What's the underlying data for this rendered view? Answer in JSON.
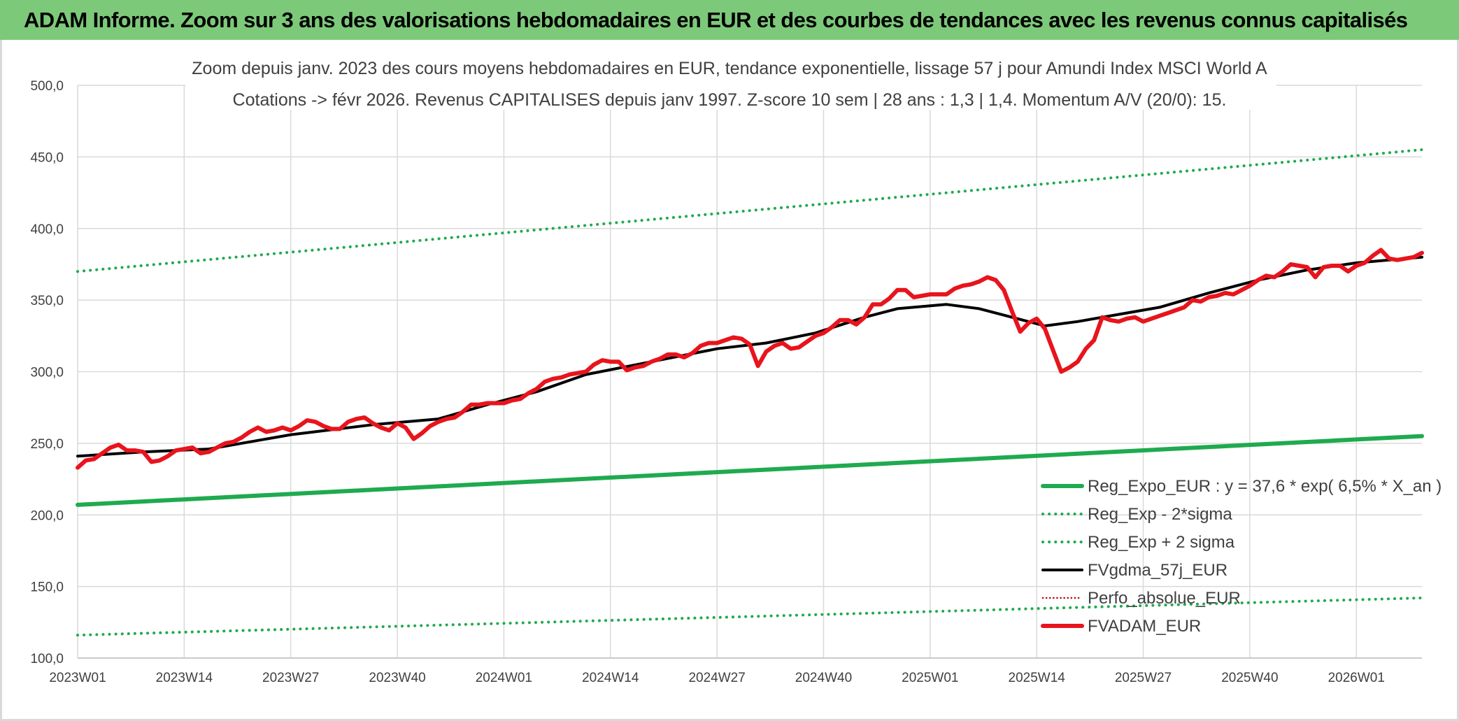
{
  "header": {
    "title": "ADAM Informe. Zoom sur 3 ans des valorisations hebdomadaires en EUR et des courbes de tendances avec les revenus connus capitalisés",
    "background": "#7dc97a"
  },
  "chart_data": {
    "type": "line",
    "title_line1": "Zoom depuis janv. 2023 des cours moyens hebdomadaires en EUR, tendance exponentielle, lissage 57 j pour Amundi Index MSCI World A",
    "title_line2": "Cotations -> févr 2026. Revenus CAPITALISES depuis janv 1997. Z-score 10 sem | 28 ans : 1,3 | 1,4. Momentum A/V (20/0): 15.",
    "ylim": [
      100,
      500
    ],
    "yticks": [
      "100,0",
      "150,0",
      "200,0",
      "250,0",
      "300,0",
      "350,0",
      "400,0",
      "450,0",
      "500,0"
    ],
    "xlim": [
      0,
      164
    ],
    "xticks": [
      {
        "label": "2023W01",
        "x": 0
      },
      {
        "label": "2023W14",
        "x": 13
      },
      {
        "label": "2023W27",
        "x": 26
      },
      {
        "label": "2023W40",
        "x": 39
      },
      {
        "label": "2024W01",
        "x": 52
      },
      {
        "label": "2024W14",
        "x": 65
      },
      {
        "label": "2024W27",
        "x": 78
      },
      {
        "label": "2024W40",
        "x": 91
      },
      {
        "label": "2025W01",
        "x": 104
      },
      {
        "label": "2025W14",
        "x": 117
      },
      {
        "label": "2025W27",
        "x": 130
      },
      {
        "label": "2025W40",
        "x": 143
      },
      {
        "label": "2026W01",
        "x": 156
      }
    ],
    "grid": true,
    "legend_position": "bottom-right",
    "series": [
      {
        "name": "Reg_Expo_EUR : y = 37,6 * exp( 6,5% *  X_an )",
        "color": "#1faa4f",
        "style": "solid-thick",
        "x": [
          0,
          164
        ],
        "values": [
          207,
          255
        ]
      },
      {
        "name": "Reg_Exp - 2*sigma",
        "color": "#1faa4f",
        "style": "dotted",
        "x": [
          0,
          164
        ],
        "values": [
          116,
          142
        ]
      },
      {
        "name": "Reg_Exp + 2 sigma",
        "color": "#1faa4f",
        "style": "dotted",
        "x": [
          0,
          164
        ],
        "values": [
          370,
          455
        ]
      },
      {
        "name": "FVgdma_57j_EUR",
        "color": "#000000",
        "style": "solid",
        "x": [
          0,
          8,
          16,
          26,
          36,
          44,
          50,
          56,
          62,
          70,
          78,
          84,
          90,
          96,
          100,
          106,
          110,
          114,
          118,
          122,
          126,
          132,
          138,
          144,
          150,
          156,
          164
        ],
        "values": [
          241,
          244,
          246,
          256,
          263,
          267,
          277,
          286,
          298,
          307,
          316,
          320,
          327,
          338,
          344,
          347,
          344,
          338,
          332,
          335,
          339,
          345,
          355,
          364,
          371,
          376,
          380
        ]
      },
      {
        "name": "Perfo_absolue_EUR",
        "color": "#c00000",
        "style": "dotted-thin",
        "x": [],
        "values": []
      },
      {
        "name": "FVADAM_EUR",
        "color": "#e8141c",
        "style": "solid-thick",
        "x": [
          0,
          1,
          2,
          3,
          4,
          5,
          6,
          7,
          8,
          9,
          10,
          11,
          12,
          13,
          14,
          15,
          16,
          17,
          18,
          19,
          20,
          21,
          22,
          23,
          24,
          25,
          26,
          27,
          28,
          29,
          30,
          31,
          32,
          33,
          34,
          35,
          36,
          37,
          38,
          39,
          40,
          41,
          42,
          43,
          44,
          45,
          46,
          47,
          48,
          49,
          50,
          51,
          52,
          53,
          54,
          55,
          56,
          57,
          58,
          59,
          60,
          61,
          62,
          63,
          64,
          65,
          66,
          67,
          68,
          69,
          70,
          71,
          72,
          73,
          74,
          75,
          76,
          77,
          78,
          79,
          80,
          81,
          82,
          83,
          84,
          85,
          86,
          87,
          88,
          89,
          90,
          91,
          92,
          93,
          94,
          95,
          96,
          97,
          98,
          99,
          100,
          101,
          102,
          103,
          104,
          105,
          106,
          107,
          108,
          109,
          110,
          111,
          112,
          113,
          114,
          115,
          116,
          117,
          118,
          119,
          120,
          121,
          122,
          123,
          124,
          125,
          126,
          127,
          128,
          129,
          130,
          131,
          132,
          133,
          134,
          135,
          136,
          137,
          138,
          139,
          140,
          141,
          142,
          143,
          144,
          145,
          146,
          147,
          148,
          149,
          150,
          151,
          152,
          153,
          154,
          155,
          156,
          157,
          158,
          159,
          160,
          161,
          162,
          163,
          164
        ],
        "values": [
          233,
          238,
          239,
          243,
          247,
          249,
          245,
          245,
          244,
          237,
          238,
          241,
          245,
          246,
          247,
          243,
          244,
          247,
          250,
          251,
          254,
          258,
          261,
          258,
          259,
          261,
          259,
          262,
          266,
          265,
          262,
          260,
          260,
          265,
          267,
          268,
          264,
          261,
          259,
          264,
          261,
          253,
          257,
          262,
          265,
          267,
          268,
          272,
          277,
          277,
          278,
          278,
          278,
          280,
          281,
          285,
          288,
          293,
          295,
          296,
          298,
          299,
          300,
          305,
          308,
          307,
          307,
          301,
          303,
          304,
          307,
          309,
          312,
          312,
          310,
          313,
          318,
          320,
          320,
          322,
          324,
          323,
          319,
          304,
          314,
          318,
          320,
          316,
          317,
          321,
          325,
          327,
          331,
          336,
          336,
          333,
          338,
          347,
          347,
          351,
          357,
          357,
          352,
          353,
          354,
          354,
          354,
          358,
          360,
          361,
          363,
          366,
          364,
          357,
          342,
          328,
          334,
          337,
          330,
          315,
          300,
          303,
          307,
          316,
          322,
          338,
          336,
          335,
          337,
          338,
          335,
          337,
          339,
          341,
          343,
          345,
          350,
          349,
          352,
          353,
          355,
          354,
          357,
          360,
          364,
          367,
          366,
          370,
          375,
          374,
          373,
          366,
          373,
          374,
          374,
          370,
          374,
          376,
          381,
          385,
          379,
          378,
          379,
          380,
          383
        ]
      }
    ]
  }
}
